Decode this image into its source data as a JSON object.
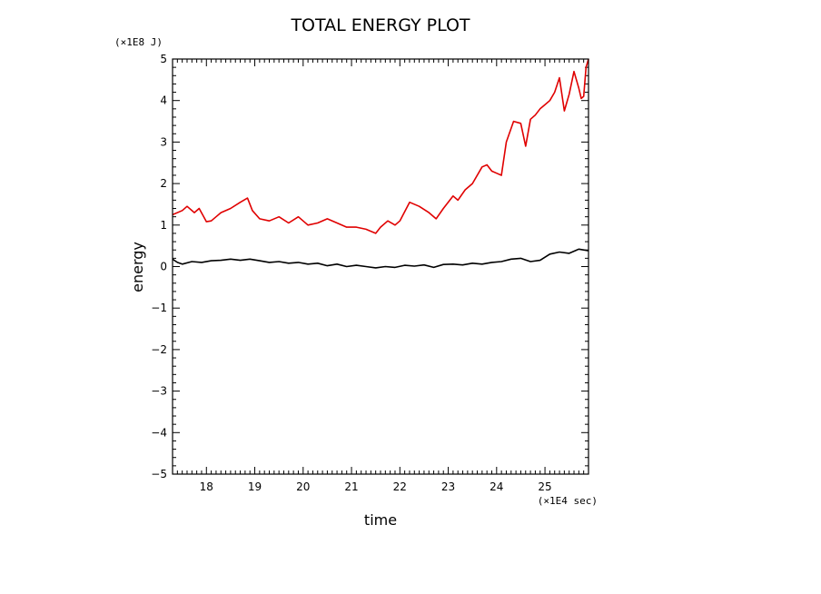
{
  "chart_data": {
    "type": "line",
    "title": "TOTAL ENERGY PLOT",
    "xlabel": "time",
    "ylabel": "energy",
    "x_unit": "(×1E4 sec)",
    "y_unit": "(×1E8 J)",
    "xlim": [
      17.3,
      25.9
    ],
    "ylim": [
      -5,
      5
    ],
    "xticks": [
      18,
      19,
      20,
      21,
      22,
      23,
      24,
      25
    ],
    "yticks": [
      -5,
      -4,
      -3,
      -2,
      -1,
      0,
      1,
      2,
      3,
      4,
      5
    ],
    "grid": false,
    "series": [
      {
        "color": "#e00000",
        "x": [
          17.3,
          17.5,
          17.6,
          17.75,
          17.85,
          18.0,
          18.1,
          18.2,
          18.3,
          18.5,
          18.7,
          18.85,
          18.95,
          19.1,
          19.3,
          19.5,
          19.7,
          19.9,
          20.1,
          20.3,
          20.5,
          20.7,
          20.9,
          21.1,
          21.3,
          21.5,
          21.6,
          21.75,
          21.9,
          22.0,
          22.2,
          22.4,
          22.6,
          22.75,
          22.9,
          23.1,
          23.2,
          23.35,
          23.5,
          23.7,
          23.8,
          23.9,
          24.0,
          24.1,
          24.2,
          24.35,
          24.5,
          24.6,
          24.7,
          24.8,
          24.9,
          25.0,
          25.1,
          25.2,
          25.3,
          25.4,
          25.5,
          25.6,
          25.7,
          25.75,
          25.8,
          25.85,
          25.9
        ],
        "y": [
          1.25,
          1.35,
          1.45,
          1.3,
          1.4,
          1.08,
          1.1,
          1.2,
          1.3,
          1.4,
          1.55,
          1.65,
          1.35,
          1.15,
          1.1,
          1.2,
          1.05,
          1.2,
          1.0,
          1.05,
          1.15,
          1.05,
          0.95,
          0.95,
          0.9,
          0.8,
          0.95,
          1.1,
          1.0,
          1.1,
          1.55,
          1.45,
          1.3,
          1.15,
          1.4,
          1.7,
          1.6,
          1.85,
          2.0,
          2.4,
          2.45,
          2.3,
          2.25,
          2.2,
          3.0,
          3.5,
          3.45,
          2.9,
          3.55,
          3.65,
          3.8,
          3.9,
          4.0,
          4.2,
          4.55,
          3.75,
          4.15,
          4.7,
          4.3,
          4.05,
          4.1,
          4.8,
          5.0
        ]
      },
      {
        "color": "#000000",
        "x": [
          17.3,
          17.4,
          17.5,
          17.7,
          17.9,
          18.1,
          18.3,
          18.5,
          18.7,
          18.9,
          19.1,
          19.3,
          19.5,
          19.7,
          19.9,
          20.1,
          20.3,
          20.5,
          20.7,
          20.9,
          21.1,
          21.3,
          21.5,
          21.7,
          21.9,
          22.1,
          22.3,
          22.5,
          22.7,
          22.9,
          23.1,
          23.3,
          23.5,
          23.7,
          23.9,
          24.1,
          24.3,
          24.5,
          24.7,
          24.9,
          25.1,
          25.3,
          25.5,
          25.7,
          25.9
        ],
        "y": [
          0.18,
          0.1,
          0.06,
          0.12,
          0.1,
          0.14,
          0.15,
          0.18,
          0.15,
          0.18,
          0.14,
          0.1,
          0.12,
          0.08,
          0.1,
          0.06,
          0.08,
          0.02,
          0.06,
          0.0,
          0.03,
          0.0,
          -0.03,
          0.0,
          -0.02,
          0.03,
          0.01,
          0.04,
          -0.02,
          0.05,
          0.06,
          0.04,
          0.08,
          0.06,
          0.1,
          0.12,
          0.18,
          0.2,
          0.12,
          0.15,
          0.3,
          0.35,
          0.32,
          0.42,
          0.38
        ]
      }
    ]
  }
}
